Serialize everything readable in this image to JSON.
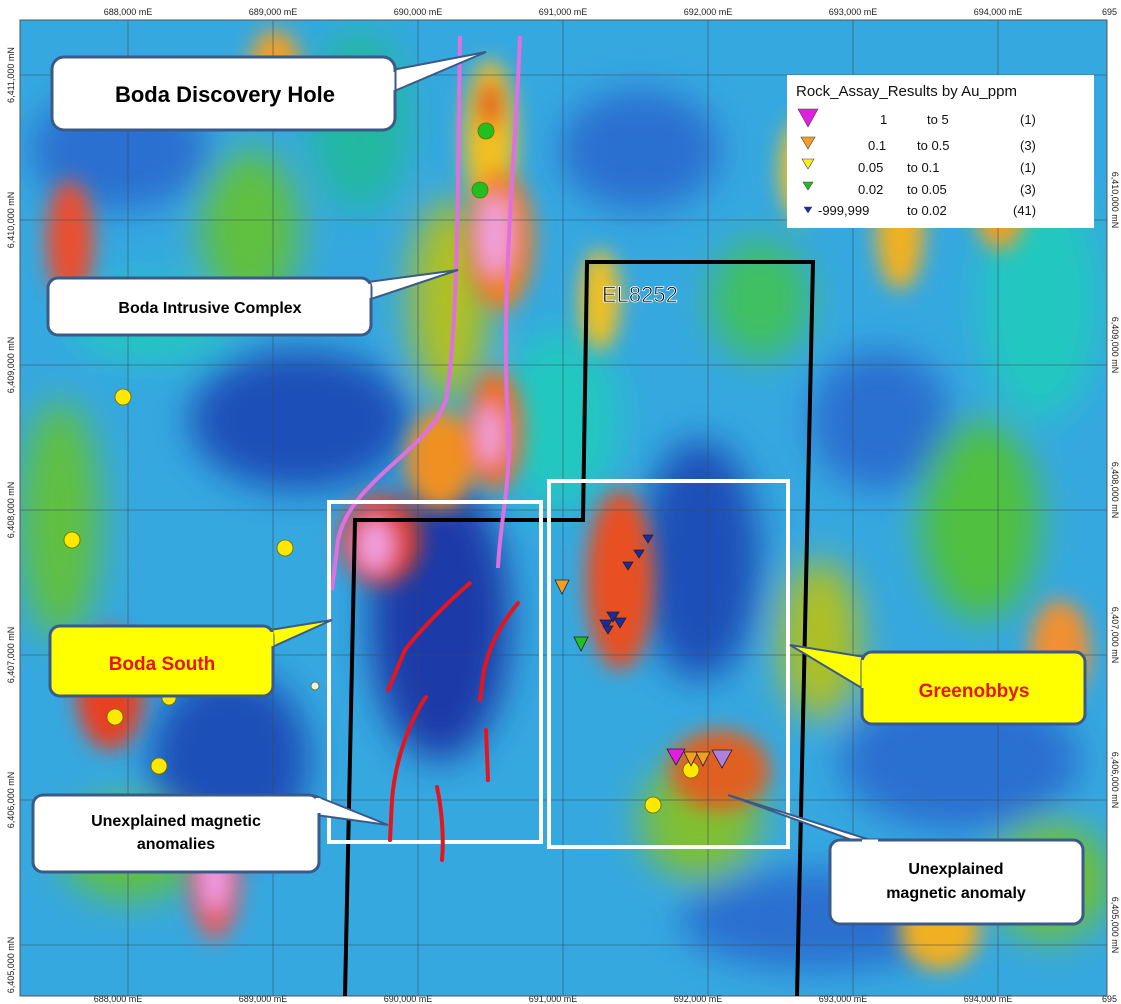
{
  "map": {
    "top_eastings": [
      "688,000 mE",
      "689,000 mE",
      "690,000 mE",
      "691,000 mE",
      "692,000 mE",
      "693,000 mE",
      "694,000 mE",
      "695"
    ],
    "bottom_eastings": [
      "688,000 mE",
      "689,000 mE",
      "690,000 mE",
      "691,000 mE",
      "692,000 mE",
      "693,000 mE",
      "694,000 mE",
      "695"
    ],
    "left_northings": [
      "6,411,000 mN",
      "6,410,000 mN",
      "6,409,000 mN",
      "6,408,000 mN",
      "6,407,000 mN",
      "6,406,000 mN",
      "6,405,000 mN"
    ],
    "right_northings": [
      "6,410,000 mN",
      "6,409,000 mN",
      "6,408,000 mN",
      "6,407,000 mN",
      "6,406,000 mN",
      "6,405,000 mN"
    ],
    "tenement_label": "EL8252"
  },
  "callouts": {
    "discovery_hole": "Boda Discovery Hole",
    "intrusive_complex": "Boda Intrusive Complex",
    "boda_south": "Boda South",
    "greenobbys": "Greenobbys",
    "anomalies_line1": "Unexplained magnetic",
    "anomalies_line2": "anomalies",
    "anomaly_line1": "Unexplained",
    "anomaly_line2": "magnetic anomaly"
  },
  "legend": {
    "title": "Rock_Assay_Results by Au_ppm",
    "rows": [
      {
        "from": "1",
        "to": "to 5",
        "count": "(1)",
        "color": "#e020e0"
      },
      {
        "from": "0.1",
        "to": "to 0.5",
        "count": "(3)",
        "color": "#f0a020"
      },
      {
        "from": "0.05",
        "to": "to 0.1",
        "count": "(1)",
        "color": "#f8f020"
      },
      {
        "from": "0.02",
        "to": "to 0.05",
        "count": "(3)",
        "color": "#20c020"
      },
      {
        "from": "-999,999",
        "to": "to 0.02",
        "count": "(41)",
        "color": "#1a2aa8"
      }
    ]
  },
  "colors": {
    "intrusive_outline": "#e070e0",
    "anomaly_trace": "#e8141c",
    "tenement_boundary": "#000000",
    "area_box": "#ffffff",
    "callout_fill_white": "#ffffff",
    "callout_fill_yellow": "#ffff00",
    "callout_border": "#3a5a8a"
  }
}
